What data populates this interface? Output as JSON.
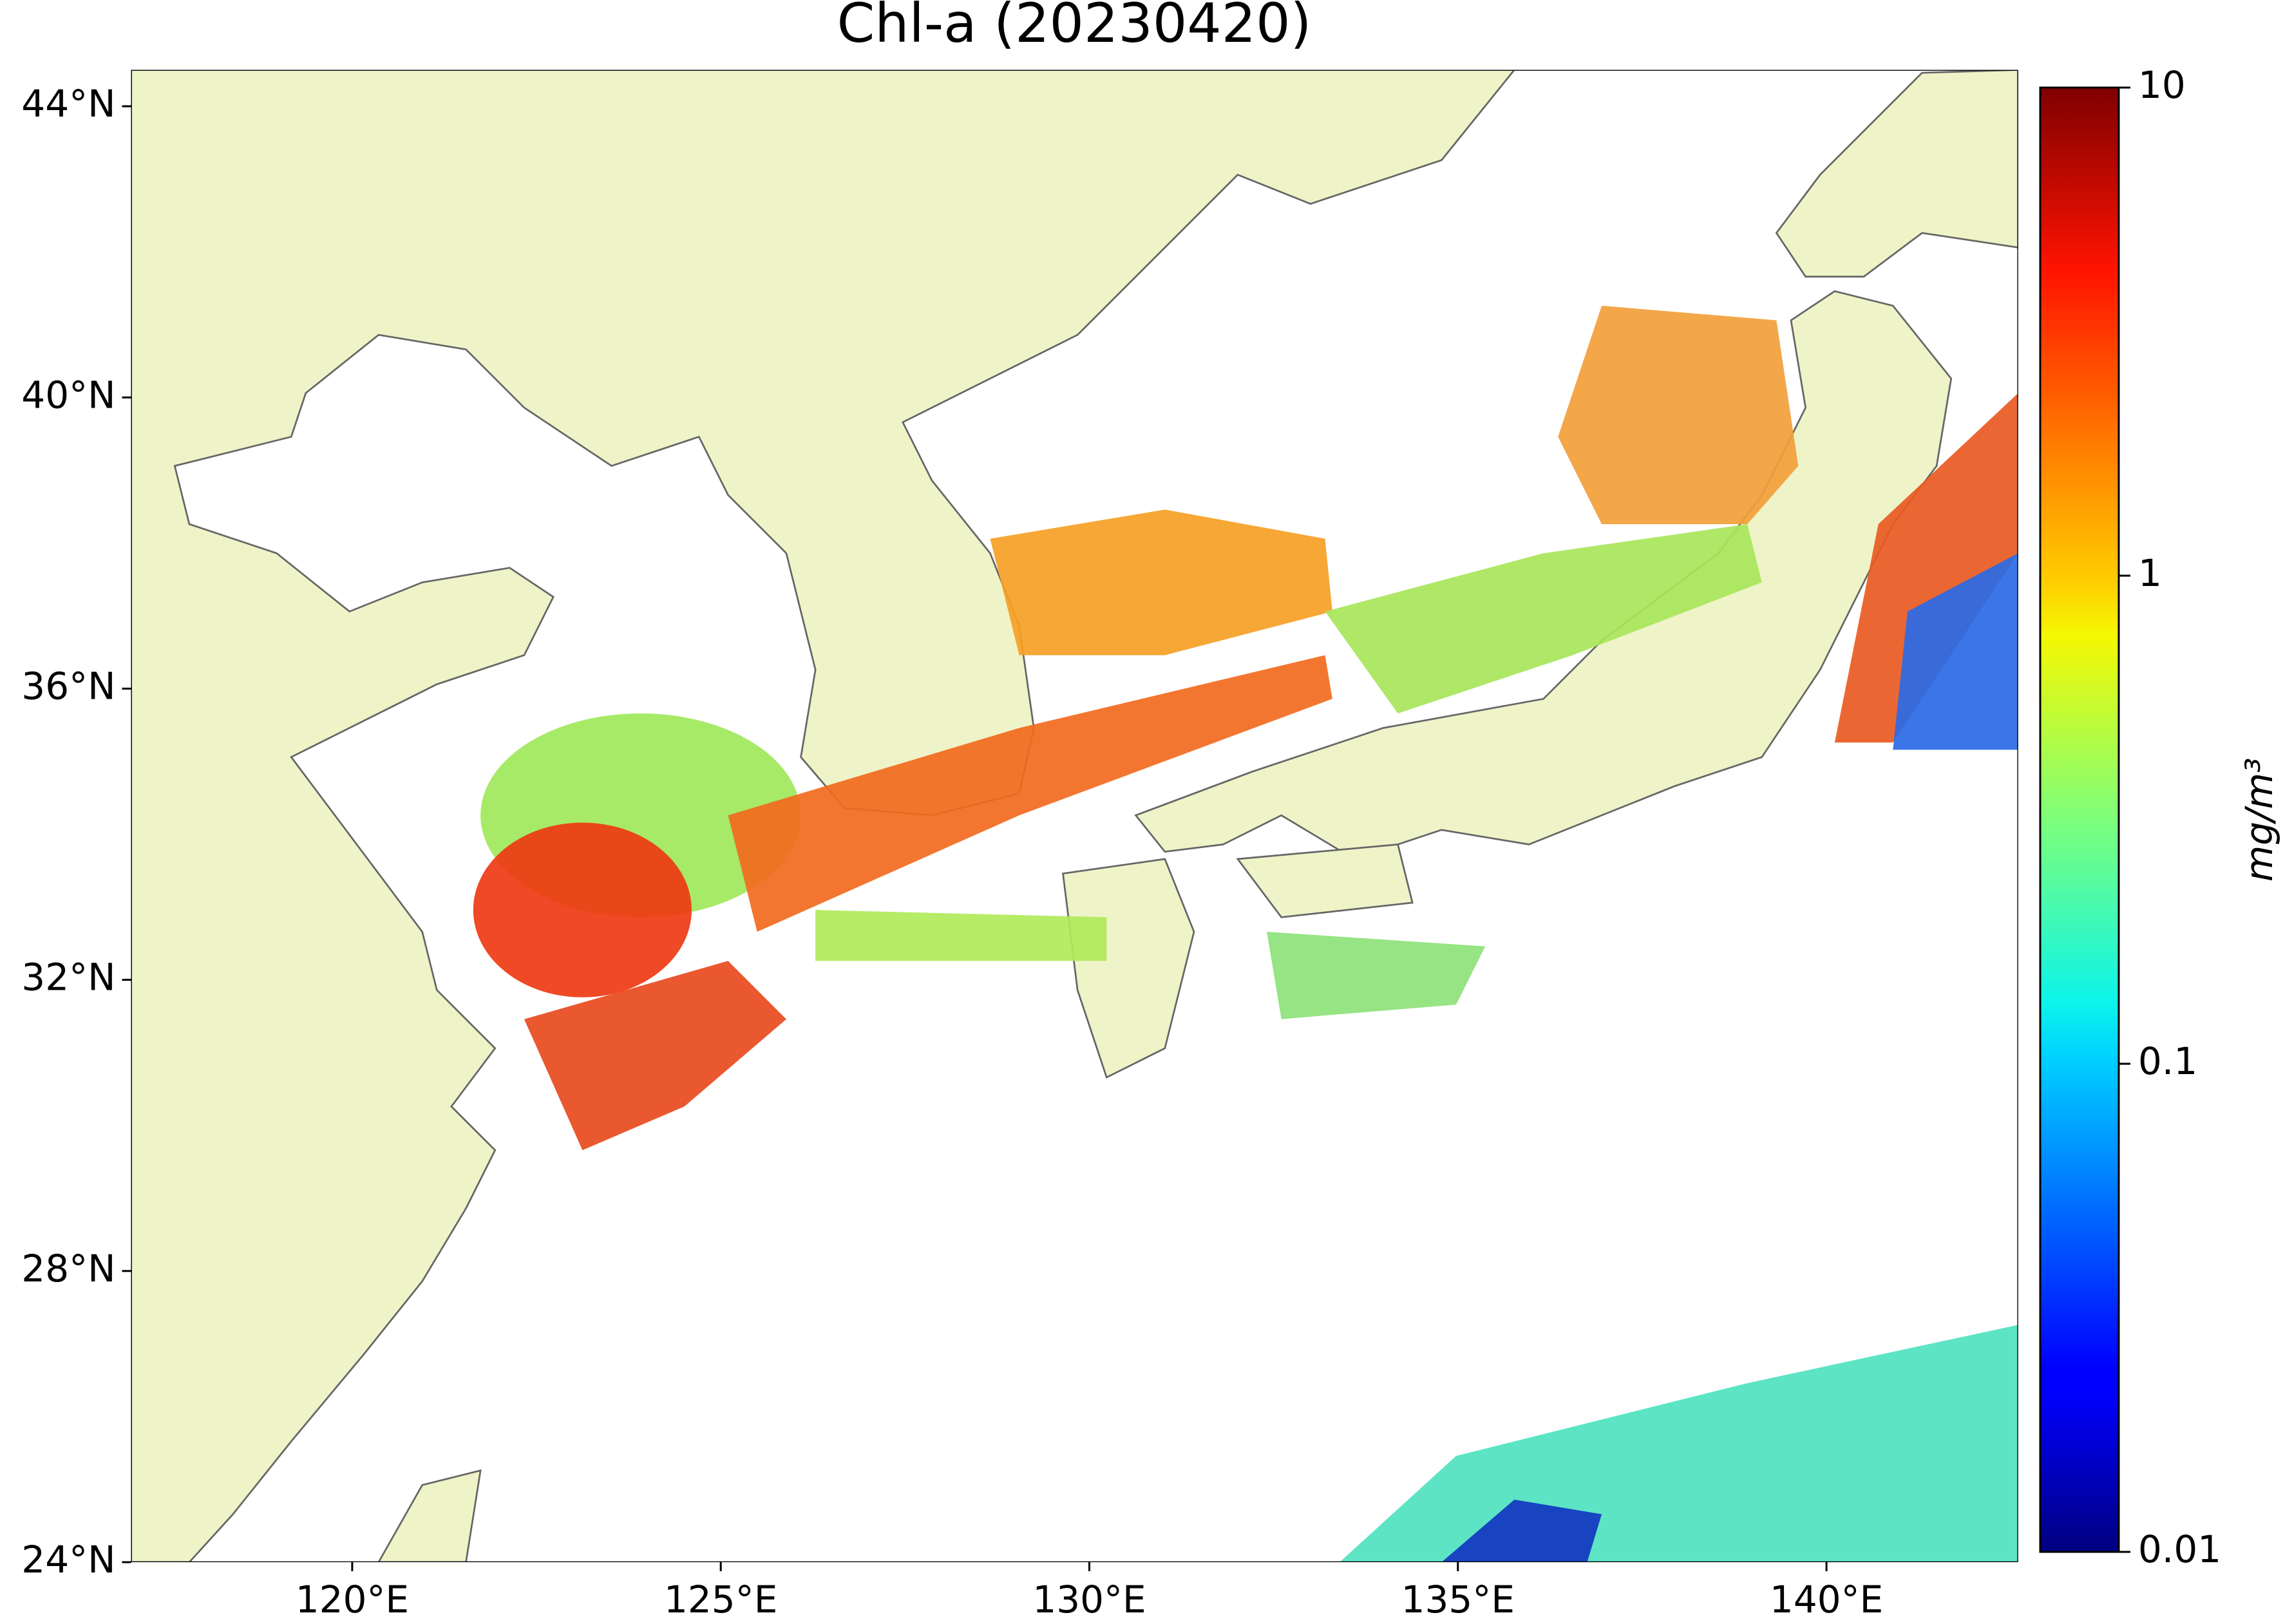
{
  "map": {
    "title": "Chl-a (20230420)",
    "xlim": [
      117,
      142.6
    ],
    "ylim": [
      24,
      44.5
    ],
    "xticks": [
      {
        "value": 120,
        "label": "120°E"
      },
      {
        "value": 125,
        "label": "125°E"
      },
      {
        "value": 130,
        "label": "130°E"
      },
      {
        "value": 135,
        "label": "135°E"
      },
      {
        "value": 140,
        "label": "140°E"
      }
    ],
    "yticks": [
      {
        "value": 24,
        "label": "24°N"
      },
      {
        "value": 28,
        "label": "28°N"
      },
      {
        "value": 32,
        "label": "32°N"
      },
      {
        "value": 36,
        "label": "36°N"
      },
      {
        "value": 40,
        "label": "40°N"
      },
      {
        "value": 44,
        "label": "44°N"
      }
    ],
    "colorbar": {
      "label": "mg/m³",
      "colormap": "jet",
      "log_scale": true,
      "lim": [
        0.01,
        10
      ],
      "ticks": [
        0.01,
        0.1,
        1,
        10
      ]
    }
  }
}
